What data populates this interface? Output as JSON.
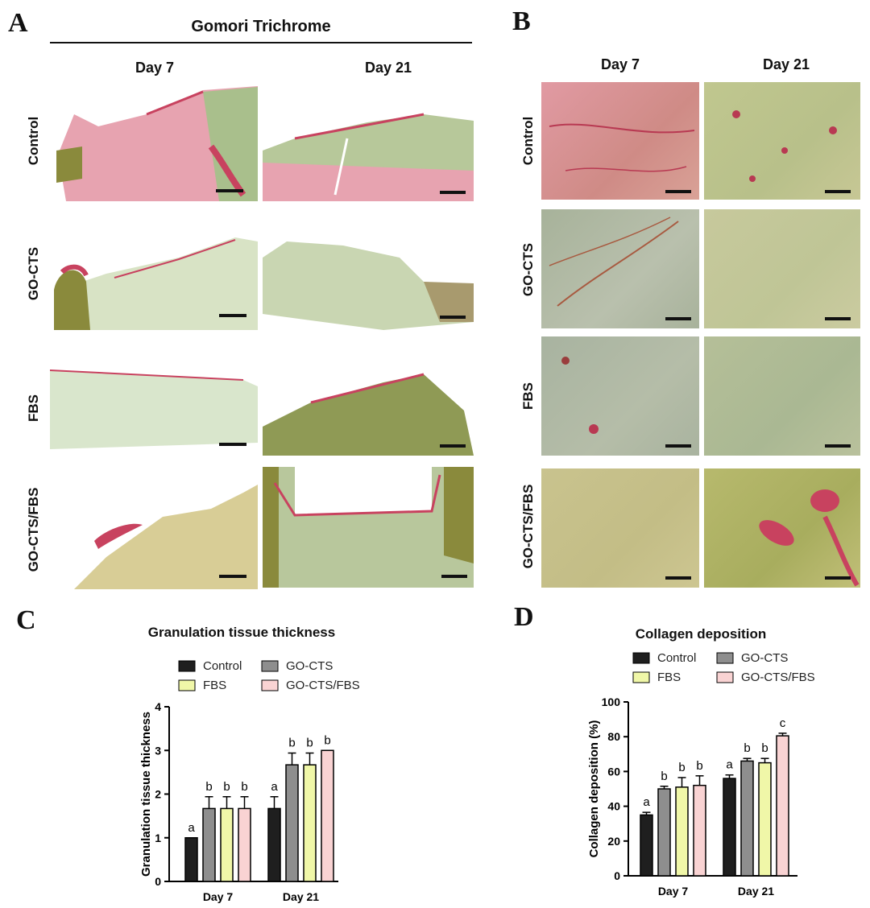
{
  "panels": {
    "a": {
      "letter": "A",
      "title": "Gomori Trichrome",
      "columns": [
        "Day 7",
        "Day 21"
      ],
      "rows": [
        "Control",
        "GO-CTS",
        "FBS",
        "GO-CTS/FBS"
      ]
    },
    "b": {
      "letter": "B",
      "columns": [
        "Day 7",
        "Day 21"
      ],
      "rows": [
        "Control",
        "GO-CTS",
        "FBS",
        "GO-CTS/FBS"
      ]
    },
    "c": {
      "letter": "C"
    },
    "d": {
      "letter": "D"
    }
  },
  "colors": {
    "Control": "#1f1f1f",
    "GO-CTS": "#8e8e8e",
    "FBS": "#f0f7a8",
    "GO-CTS/FBS": "#f9d3d3",
    "tissue_red": "#c8425f",
    "tissue_green": "#a9bf8c",
    "tissue_olive": "#8a8a3c"
  },
  "chart_data": [
    {
      "type": "bar",
      "title": "Granulation tissue thickness",
      "ylabel": "Granulation tissue thickness",
      "xlabel": "",
      "categories": [
        "Day 7",
        "Day 21"
      ],
      "ylim": [
        0,
        4
      ],
      "yticks": [
        "0",
        "1",
        "2",
        "3",
        "4"
      ],
      "legend": [
        "Control",
        "GO-CTS",
        "FBS",
        "GO-CTS/FBS"
      ],
      "legend_placement": "top",
      "series": [
        {
          "name": "Control",
          "values": [
            1.0,
            1.67
          ],
          "errors": [
            0,
            0.27
          ],
          "letters": [
            "a",
            "a"
          ]
        },
        {
          "name": "GO-CTS",
          "values": [
            1.67,
            2.67
          ],
          "errors": [
            0.27,
            0.27
          ],
          "letters": [
            "b",
            "b"
          ]
        },
        {
          "name": "FBS",
          "values": [
            1.67,
            2.67
          ],
          "errors": [
            0.27,
            0.27
          ],
          "letters": [
            "b",
            "b"
          ]
        },
        {
          "name": "GO-CTS/FBS",
          "values": [
            1.67,
            3.0
          ],
          "errors": [
            0.27,
            0
          ],
          "letters": [
            "b",
            "b"
          ]
        }
      ]
    },
    {
      "type": "bar",
      "title": "Collagen deposition",
      "ylabel": "Collagen deposition (%)",
      "xlabel": "",
      "categories": [
        "Day 7",
        "Day 21"
      ],
      "ylim": [
        0,
        100
      ],
      "yticks": [
        "0",
        "20",
        "40",
        "60",
        "80",
        "100"
      ],
      "legend": [
        "Control",
        "GO-CTS",
        "FBS",
        "GO-CTS/FBS"
      ],
      "legend_placement": "top",
      "series": [
        {
          "name": "Control",
          "values": [
            35,
            56
          ],
          "errors": [
            1.5,
            2
          ],
          "letters": [
            "a",
            "a"
          ]
        },
        {
          "name": "GO-CTS",
          "values": [
            50,
            66
          ],
          "errors": [
            1.5,
            1.5
          ],
          "letters": [
            "b",
            "b"
          ]
        },
        {
          "name": "FBS",
          "values": [
            51,
            65
          ],
          "errors": [
            5.5,
            2.5
          ],
          "letters": [
            "b",
            "b"
          ]
        },
        {
          "name": "GO-CTS/FBS",
          "values": [
            52,
            80.5
          ],
          "errors": [
            5.5,
            1.5
          ],
          "letters": [
            "b",
            "c"
          ]
        }
      ]
    }
  ]
}
